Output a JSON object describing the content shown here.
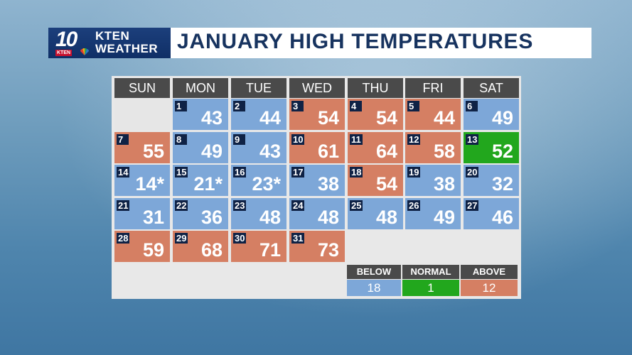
{
  "header": {
    "logo_number": "10",
    "logo_sub": "KTEN",
    "brand_line1": "KTEN",
    "brand_line2": "WEATHER",
    "title": "JANUARY HIGH TEMPERATURES"
  },
  "colors": {
    "below": "#7da7d8",
    "normal": "#22a71d",
    "above": "#d57f63",
    "header_bar": "#4a4a4a",
    "title_text": "#17335f"
  },
  "calendar": {
    "days": [
      "SUN",
      "MON",
      "TUE",
      "WED",
      "THU",
      "FRI",
      "SAT"
    ],
    "weeks": [
      [
        null,
        {
          "day": "1",
          "temp": "43",
          "status": "below"
        },
        {
          "day": "2",
          "temp": "44",
          "status": "below"
        },
        {
          "day": "3",
          "temp": "54",
          "status": "above"
        },
        {
          "day": "4",
          "temp": "54",
          "status": "above"
        },
        {
          "day": "5",
          "temp": "44",
          "status": "above"
        },
        {
          "day": "6",
          "temp": "49",
          "status": "below"
        }
      ],
      [
        {
          "day": "7",
          "temp": "55",
          "status": "above"
        },
        {
          "day": "8",
          "temp": "49",
          "status": "below"
        },
        {
          "day": "9",
          "temp": "43",
          "status": "below"
        },
        {
          "day": "10",
          "temp": "61",
          "status": "above"
        },
        {
          "day": "11",
          "temp": "64",
          "status": "above"
        },
        {
          "day": "12",
          "temp": "58",
          "status": "above"
        },
        {
          "day": "13",
          "temp": "52",
          "status": "normal"
        }
      ],
      [
        {
          "day": "14",
          "temp": "14*",
          "status": "below"
        },
        {
          "day": "15",
          "temp": "21*",
          "status": "below"
        },
        {
          "day": "16",
          "temp": "23*",
          "status": "below"
        },
        {
          "day": "17",
          "temp": "38",
          "status": "below"
        },
        {
          "day": "18",
          "temp": "54",
          "status": "above"
        },
        {
          "day": "19",
          "temp": "38",
          "status": "below"
        },
        {
          "day": "20",
          "temp": "32",
          "status": "below"
        }
      ],
      [
        {
          "day": "21",
          "temp": "31",
          "status": "below"
        },
        {
          "day": "22",
          "temp": "36",
          "status": "below"
        },
        {
          "day": "23",
          "temp": "48",
          "status": "below"
        },
        {
          "day": "24",
          "temp": "48",
          "status": "below"
        },
        {
          "day": "25",
          "temp": "48",
          "status": "below"
        },
        {
          "day": "26",
          "temp": "49",
          "status": "below"
        },
        {
          "day": "27",
          "temp": "46",
          "status": "below"
        }
      ],
      [
        {
          "day": "28",
          "temp": "59",
          "status": "above"
        },
        {
          "day": "29",
          "temp": "68",
          "status": "above"
        },
        {
          "day": "30",
          "temp": "71",
          "status": "above"
        },
        {
          "day": "31",
          "temp": "73",
          "status": "above"
        },
        null,
        null,
        null
      ]
    ]
  },
  "summary": {
    "below": {
      "label": "BELOW",
      "count": "18"
    },
    "normal": {
      "label": "NORMAL",
      "count": "1"
    },
    "above": {
      "label": "ABOVE",
      "count": "12"
    }
  }
}
